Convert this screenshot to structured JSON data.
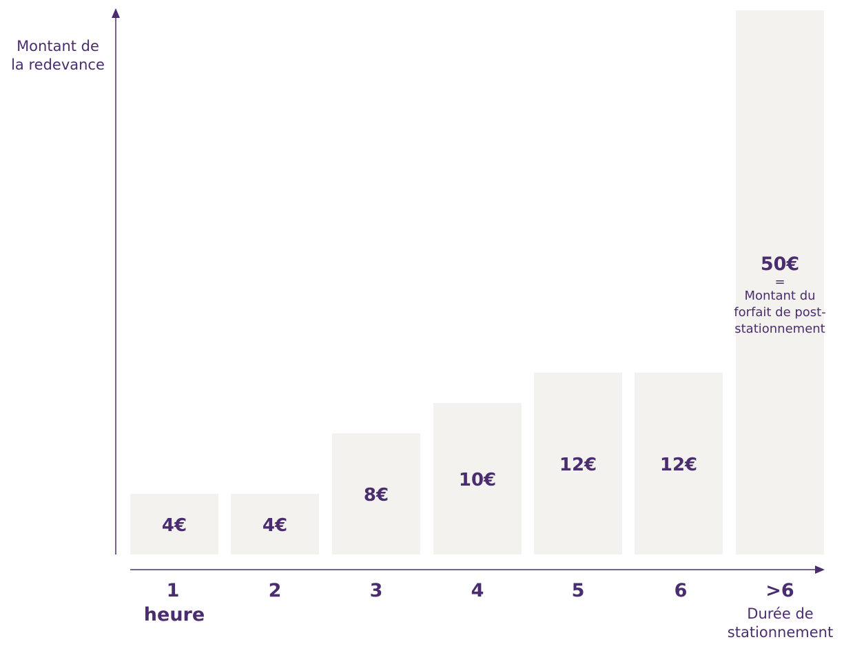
{
  "chart_data": {
    "type": "bar",
    "categories": [
      "1",
      "2",
      "3",
      "4",
      "5",
      "6",
      ">6"
    ],
    "category_sublabels": [
      "heure",
      "",
      "",
      "",
      "",
      "",
      ""
    ],
    "values": [
      4,
      4,
      8,
      10,
      12,
      12,
      50
    ],
    "value_labels": [
      "4€",
      "4€",
      "8€",
      "10€",
      "12€",
      "12€",
      "50€"
    ],
    "ylabel": "Montant de\nla redevance",
    "xlabel": "Durée de\nstationnement",
    "last_bar_note": {
      "value": "50€",
      "equals": "=",
      "text": "Montant du\nforfait de post-\nstationnement"
    },
    "colors": {
      "bar": "#f3f2ef",
      "axis": "#4a2d6e",
      "text": "#4a2d6e"
    }
  }
}
